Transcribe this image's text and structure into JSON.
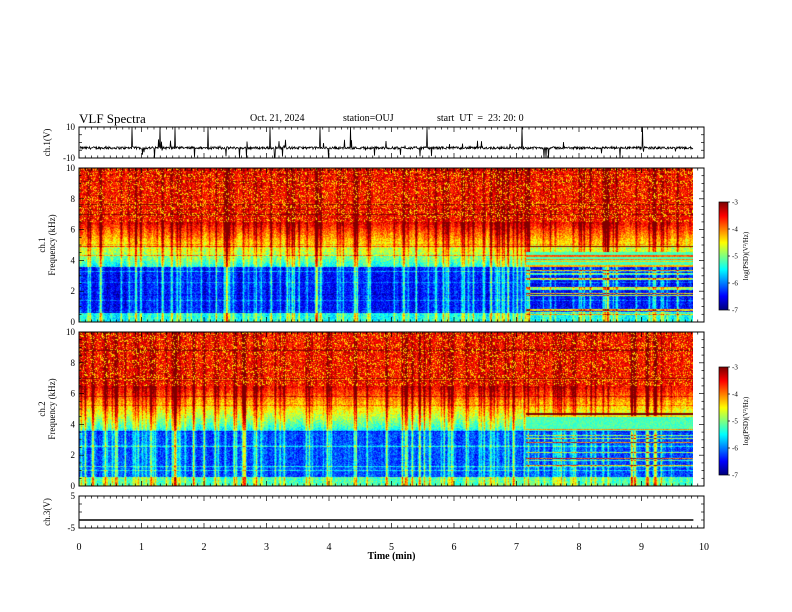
{
  "header": {
    "title": "VLF Spectra",
    "date": "Oct. 21, 2024",
    "station": "station=OUJ",
    "start": "start  UT  =  23: 20: 0"
  },
  "chart_data": [
    {
      "type": "line",
      "panel": "ch1-waveform",
      "ylabel": "ch.1(V)",
      "ylim": [
        -10,
        10
      ],
      "yticks": [
        "10",
        "-10"
      ],
      "xlim": [
        0,
        10
      ],
      "grid": false,
      "series": [
        {
          "color": "#000000",
          "baseline": -3.5,
          "amplitude": 6,
          "x_end": 9.83
        }
      ]
    },
    {
      "type": "heatmap",
      "panel": "ch1-spectrogram",
      "ylabel": "ch.1\nFrequency (kHz)",
      "ylim": [
        0,
        10
      ],
      "yticks": [
        "0",
        "2",
        "4",
        "6",
        "8",
        "10"
      ],
      "xlim": [
        0,
        10
      ],
      "x_end": 9.83,
      "colorbar": {
        "label": "log(PSD)(V²/Hz)",
        "range": [
          -7,
          -3
        ],
        "ticks": [
          "-3",
          "-4",
          "-5",
          "-6",
          "-7"
        ]
      },
      "bands_change_at_min": 7.15
    },
    {
      "type": "heatmap",
      "panel": "ch2-spectrogram",
      "ylabel": "ch.2\nFrequency (kHz)",
      "ylim": [
        0,
        10
      ],
      "yticks": [
        "0",
        "2",
        "4",
        "6",
        "8",
        "10"
      ],
      "xlim": [
        0,
        10
      ],
      "x_end": 9.83,
      "colorbar": {
        "label": "log(PSD)(V²/Hz)",
        "range": [
          -7,
          -3
        ],
        "ticks": [
          "-3",
          "-4",
          "-5",
          "-6",
          "-7"
        ]
      },
      "bands_change_at_min": 7.15
    },
    {
      "type": "line",
      "panel": "ch3-waveform",
      "ylabel": "ch.3(V)",
      "ylim": [
        -5,
        5
      ],
      "yticks": [
        "5",
        "-5"
      ],
      "xlim": [
        0,
        10
      ],
      "xlabel": "Time (min)",
      "xticks": [
        "0",
        "1",
        "2",
        "3",
        "4",
        "5",
        "6",
        "7",
        "8",
        "9",
        "10"
      ],
      "grid": false,
      "series": [
        {
          "color": "#000000",
          "constant": -2.5,
          "x_end": 9.83
        }
      ]
    }
  ]
}
